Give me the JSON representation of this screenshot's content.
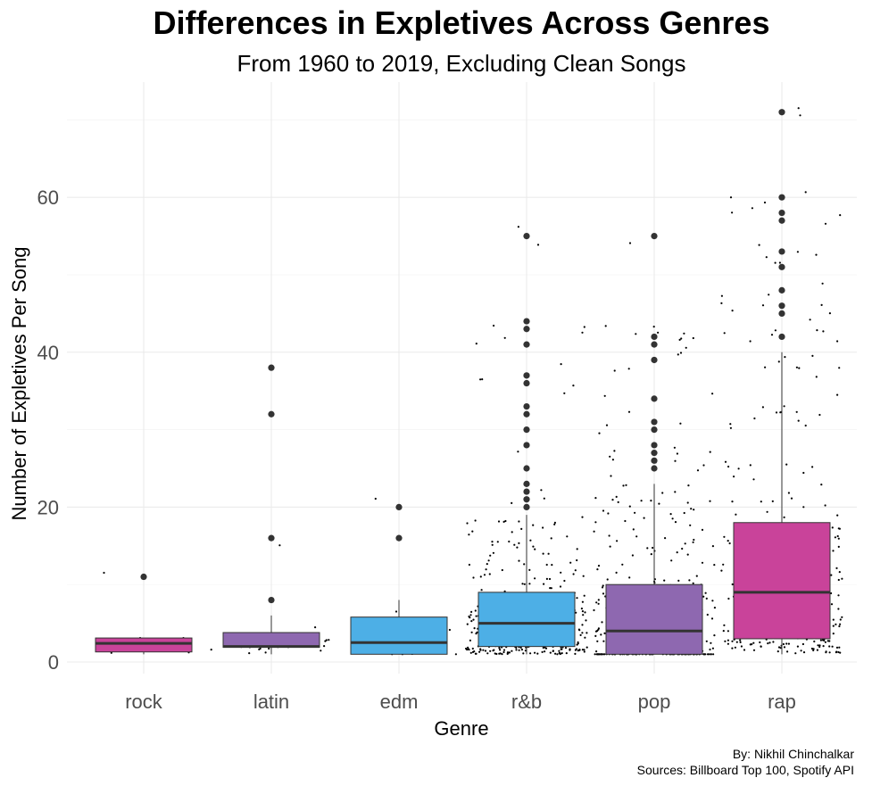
{
  "chart_data": {
    "type": "boxplot",
    "title": "Differences in Expletives Across Genres",
    "subtitle": "From 1960 to 2019, Excluding Clean Songs",
    "xlabel": "Genre",
    "ylabel": "Number of Expletives Per Song",
    "yticks": [
      0,
      20,
      40,
      60
    ],
    "ylim": [
      -2,
      74
    ],
    "grid": true,
    "caption_lines": [
      "By: Nikhil Chinchalkar",
      "Sources: Billboard Top 100, Spotify API"
    ],
    "categories": [
      "rock",
      "latin",
      "edm",
      "r&b",
      "pop",
      "rap"
    ],
    "boxes": [
      {
        "genre": "rock",
        "color": "#C9439A",
        "q1": 1.3,
        "median": 2.4,
        "q3": 3.1,
        "whisker_low": 1,
        "whisker_high": 3.1,
        "outliers": [
          11
        ],
        "jitter_count": 8
      },
      {
        "genre": "latin",
        "color": "#8E68B0",
        "q1": 1.9,
        "median": 2.0,
        "q3": 3.8,
        "whisker_low": 1,
        "whisker_high": 6,
        "outliers": [
          8,
          16,
          32,
          38
        ],
        "jitter_count": 30
      },
      {
        "genre": "edm",
        "color": "#4DAFE6",
        "q1": 1.0,
        "median": 2.5,
        "q3": 5.8,
        "whisker_low": 1,
        "whisker_high": 8,
        "outliers": [
          16,
          20
        ],
        "jitter_count": 14
      },
      {
        "genre": "r&b",
        "color": "#4DAFE6",
        "q1": 2.0,
        "median": 5.0,
        "q3": 9.0,
        "whisker_low": 1,
        "whisker_high": 19,
        "outliers": [
          20,
          21,
          22,
          23,
          25,
          28,
          30,
          32,
          33,
          36,
          37,
          41,
          43,
          44,
          55
        ],
        "jitter_count": 330
      },
      {
        "genre": "pop",
        "color": "#8E68B0",
        "q1": 1.0,
        "median": 4.0,
        "q3": 10.0,
        "whisker_low": 1,
        "whisker_high": 23,
        "outliers": [
          25,
          26,
          27,
          28,
          30,
          31,
          34,
          39,
          41,
          42,
          55
        ],
        "jitter_count": 360
      },
      {
        "genre": "rap",
        "color": "#C9439A",
        "q1": 3.0,
        "median": 9.0,
        "q3": 18.0,
        "whisker_low": 1,
        "whisker_high": 40,
        "outliers": [
          42,
          45,
          46,
          48,
          51,
          53,
          57,
          58,
          60,
          71
        ],
        "jitter_count": 290
      }
    ]
  }
}
